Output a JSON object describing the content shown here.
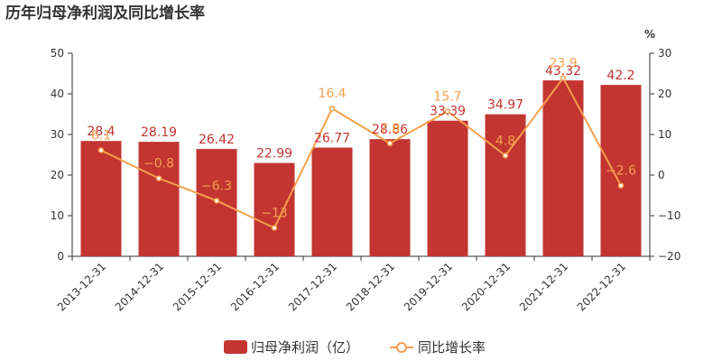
{
  "chart_data": {
    "type": "bar",
    "title": "历年归母净利润及同比增长率",
    "categories": [
      "2013-12-31",
      "2014-12-31",
      "2015-12-31",
      "2016-12-31",
      "2017-12-31",
      "2018-12-31",
      "2019-12-31",
      "2020-12-31",
      "2021-12-31",
      "2022-12-31"
    ],
    "series": [
      {
        "name": "归母净利润（亿）",
        "type": "bar",
        "axis": "left",
        "values": [
          28.4,
          28.19,
          26.42,
          22.99,
          26.77,
          28.86,
          33.39,
          34.97,
          43.32,
          42.2
        ],
        "labels": [
          "28.4",
          "28.19",
          "26.42",
          "22.99",
          "26.77",
          "28.86",
          "33.39",
          "34.97",
          "43.32",
          "42.2"
        ],
        "color": "#c23531"
      },
      {
        "name": "同比增长率",
        "type": "line",
        "axis": "right",
        "values": [
          6.1,
          -0.8,
          -6.3,
          -13,
          16.4,
          7.8,
          15.7,
          4.8,
          23.9,
          -2.6
        ],
        "labels": [
          "6.1",
          "−0.8",
          "−6.3",
          "−13",
          "16.4",
          "7.8",
          "15.7",
          "4.8",
          "23.9",
          "−2.6"
        ],
        "color": "#f5a04e"
      }
    ],
    "y_left": {
      "min": 0,
      "max": 50,
      "ticks": [
        "0",
        "10",
        "20",
        "30",
        "40",
        "50"
      ]
    },
    "y_right": {
      "min": -20,
      "max": 30,
      "ticks": [
        "−20",
        "−10",
        "0",
        "10",
        "20",
        "30"
      ],
      "unit": "%"
    },
    "grid": false,
    "legend": "bottom-center"
  }
}
